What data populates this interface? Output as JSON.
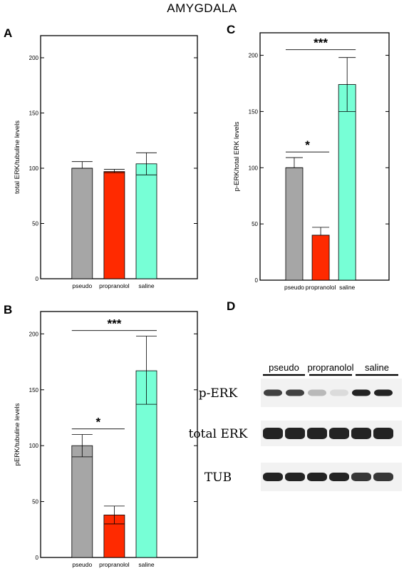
{
  "figure_title": "AMYGDALA",
  "colors": {
    "pseudo": "#a6a6a6",
    "propranolol": "#ff2a00",
    "saline": "#77ffd6"
  },
  "chart_data": [
    {
      "panel": "A",
      "type": "bar",
      "categories": [
        "pseudo",
        "propranolol",
        "saline"
      ],
      "values": [
        100,
        97,
        104
      ],
      "error_high": [
        106,
        99,
        114
      ],
      "error_low": [
        100,
        96,
        94
      ],
      "ylabel": "total ERK/tubuline levels",
      "ylim": [
        0,
        220
      ],
      "yticks": [
        0,
        50,
        100,
        150,
        200
      ],
      "significance": []
    },
    {
      "panel": "B",
      "type": "bar",
      "categories": [
        "pseudo",
        "propranolol",
        "saline"
      ],
      "values": [
        100,
        38,
        167
      ],
      "error_high": [
        110,
        46,
        198
      ],
      "error_low": [
        90,
        30,
        137
      ],
      "ylabel": "pERK/tubuline levels",
      "ylim": [
        0,
        220
      ],
      "yticks": [
        0,
        50,
        100,
        150,
        200
      ],
      "significance": [
        {
          "from": "pseudo",
          "to": "saline",
          "label": "***",
          "y": 203
        },
        {
          "from": "pseudo",
          "to": "propranolol",
          "label": "*",
          "y": 115
        }
      ]
    },
    {
      "panel": "C",
      "type": "bar",
      "categories": [
        "pseudo",
        "propranolol",
        "saline"
      ],
      "values": [
        100,
        40,
        174
      ],
      "error_high": [
        109,
        47,
        198
      ],
      "error_low": [
        100,
        40,
        150
      ],
      "ylabel": "p-ERK/total ERK levels",
      "ylim": [
        0,
        220
      ],
      "yticks": [
        0,
        50,
        100,
        150,
        200
      ],
      "significance": [
        {
          "from": "pseudo",
          "to": "saline",
          "label": "***",
          "y": 205
        },
        {
          "from": "pseudo",
          "to": "propranolol",
          "label": "*",
          "y": 114
        }
      ]
    }
  ],
  "blot": {
    "panel": "D",
    "groups": [
      "pseudo",
      "propranolol",
      "saline"
    ],
    "rows": [
      {
        "label": "p-ERK",
        "intensity": [
          0.85,
          0.85,
          0.25,
          0.08,
          1.0,
          1.0
        ]
      },
      {
        "label": "total ERK",
        "intensity": [
          1.0,
          1.0,
          1.0,
          1.0,
          1.0,
          1.0
        ]
      },
      {
        "label": "TUB",
        "intensity": [
          1.0,
          1.0,
          1.0,
          1.0,
          0.9,
          0.9
        ]
      }
    ]
  }
}
